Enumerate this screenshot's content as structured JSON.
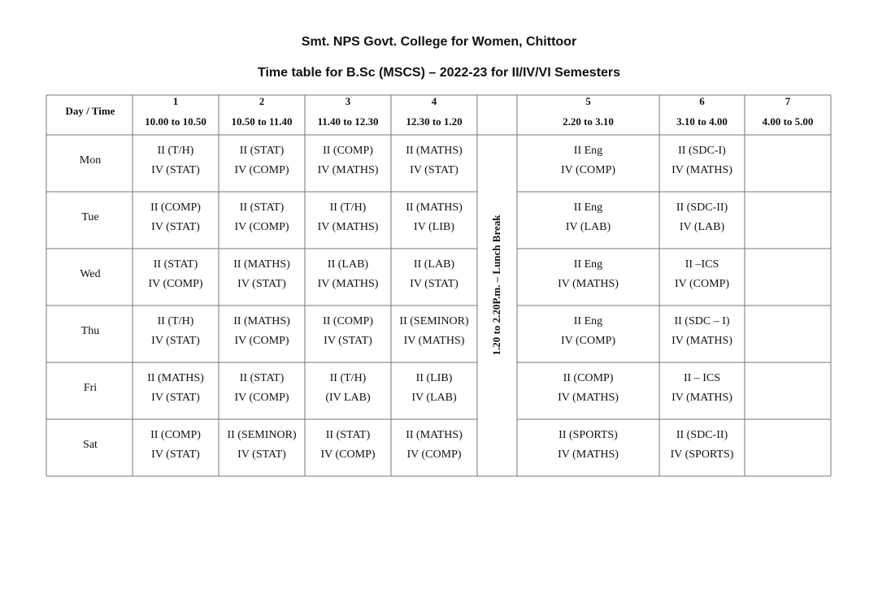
{
  "header": {
    "title": "Smt. NPS Govt. College for Women, Chittoor",
    "subtitle": "Time table for B.Sc (MSCS) – 2022-23 for II/IV/VI Semesters"
  },
  "table": {
    "corner": "Day / Time",
    "periods": [
      {
        "number": "1",
        "time": "10.00 to 10.50"
      },
      {
        "number": "2",
        "time": "10.50 to 11.40"
      },
      {
        "number": "3",
        "time": "11.40 to 12.30"
      },
      {
        "number": "4",
        "time": "12.30 to 1.20"
      },
      {
        "number": "5",
        "time": "2.20 to 3.10"
      },
      {
        "number": "6",
        "time": "3.10 to 4.00"
      },
      {
        "number": "7",
        "time": "4.00 to 5.00"
      }
    ],
    "lunch_break": "1.20 to 2.20P.m. – Lunch Break",
    "rows": [
      {
        "day": "Mon",
        "cells": [
          [
            "II (T/H)",
            "IV (STAT)"
          ],
          [
            "II (STAT)",
            "IV (COMP)"
          ],
          [
            "II (COMP)",
            "IV (MATHS)"
          ],
          [
            "II (MATHS)",
            "IV (STAT)"
          ],
          [
            "II Eng",
            "IV (COMP)"
          ],
          [
            "II (SDC-I)",
            "IV (MATHS)"
          ]
        ]
      },
      {
        "day": "Tue",
        "cells": [
          [
            "II (COMP)",
            "IV (STAT)"
          ],
          [
            "II (STAT)",
            "IV (COMP)"
          ],
          [
            "II (T/H)",
            "IV (MATHS)"
          ],
          [
            "II (MATHS)",
            "IV (LIB)"
          ],
          [
            "II Eng",
            "IV (LAB)"
          ],
          [
            "II (SDC-II)",
            "IV (LAB)"
          ]
        ]
      },
      {
        "day": "Wed",
        "cells": [
          [
            "II (STAT)",
            "IV (COMP)"
          ],
          [
            "II (MATHS)",
            "IV (STAT)"
          ],
          [
            "II (LAB)",
            "IV (MATHS)"
          ],
          [
            "II (LAB)",
            "IV (STAT)"
          ],
          [
            "II Eng",
            "IV (MATHS)"
          ],
          [
            "II –ICS",
            "IV (COMP)"
          ]
        ]
      },
      {
        "day": "Thu",
        "cells": [
          [
            "II (T/H)",
            "IV (STAT)"
          ],
          [
            "II (MATHS)",
            "IV (COMP)"
          ],
          [
            "II (COMP)",
            "IV (STAT)"
          ],
          [
            "II (SEMINOR)",
            "IV (MATHS)"
          ],
          [
            "II Eng",
            "IV (COMP)"
          ],
          [
            "II (SDC – I)",
            "IV (MATHS)"
          ]
        ]
      },
      {
        "day": "Fri",
        "cells": [
          [
            "II (MATHS)",
            "IV (STAT)"
          ],
          [
            "II (STAT)",
            "IV (COMP)"
          ],
          [
            "II (T/H)",
            "(IV LAB)"
          ],
          [
            "II (LIB)",
            "IV (LAB)"
          ],
          [
            "II (COMP)",
            "IV (MATHS)"
          ],
          [
            "II – ICS",
            "IV (MATHS)"
          ]
        ]
      },
      {
        "day": "Sat",
        "cells": [
          [
            "II (COMP)",
            "IV (STAT)"
          ],
          [
            "II (SEMINOR)",
            "IV (STAT)"
          ],
          [
            "II (STAT)",
            "IV (COMP)"
          ],
          [
            "II (MATHS)",
            "IV (COMP)"
          ],
          [
            "II (SPORTS)",
            "IV (MATHS)"
          ],
          [
            "II (SDC-II)",
            "IV (SPORTS)"
          ]
        ]
      }
    ]
  }
}
